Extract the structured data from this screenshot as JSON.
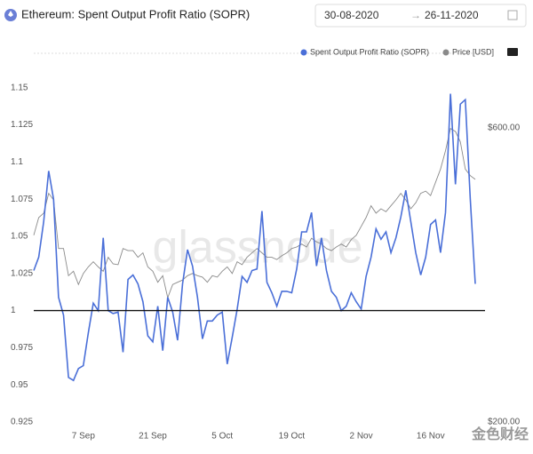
{
  "header": {
    "title": "Ethereum: Spent Output Profit Ratio (SOPR)",
    "date_from": "30-08-2020",
    "date_to": "26-11-2020"
  },
  "watermark": "glassnode",
  "corner_logo": "金色财经",
  "chart_data": {
    "type": "line",
    "categories": [
      null,
      null,
      null,
      null,
      null,
      null,
      null,
      null,
      null,
      null,
      "7 Sep",
      null,
      null,
      null,
      null,
      null,
      null,
      null,
      null,
      null,
      null,
      null,
      null,
      null,
      "21 Sep",
      null,
      null,
      null,
      null,
      null,
      null,
      null,
      null,
      null,
      null,
      null,
      null,
      null,
      "5 Oct",
      null,
      null,
      null,
      null,
      null,
      null,
      null,
      null,
      null,
      null,
      null,
      null,
      null,
      "19 Oct",
      null,
      null,
      null,
      null,
      null,
      null,
      null,
      null,
      null,
      null,
      null,
      null,
      null,
      "2 Nov",
      null,
      null,
      null,
      null,
      null,
      null,
      null,
      null,
      null,
      null,
      null,
      null,
      null,
      "16 Nov",
      null,
      null,
      null,
      null,
      null,
      null,
      null,
      null,
      null
    ],
    "series": [
      {
        "name": "Spent Output Profit Ratio (SOPR)",
        "color": "#4a6fd8",
        "values": [
          1.027,
          1.036,
          1.06,
          1.094,
          1.075,
          1.009,
          0.997,
          0.955,
          0.953,
          0.961,
          0.963,
          0.985,
          1.005,
          1.0,
          1.049,
          1.0,
          0.998,
          0.999,
          0.972,
          1.021,
          1.024,
          1.018,
          1.006,
          0.983,
          0.979,
          1.003,
          0.973,
          1.009,
          0.999,
          0.98,
          1.018,
          1.041,
          1.03,
          1.009,
          0.981,
          0.993,
          0.993,
          0.997,
          0.999,
          0.964,
          0.982,
          1.001,
          1.023,
          1.019,
          1.027,
          1.028,
          1.067,
          1.019,
          1.012,
          1.003,
          1.013,
          1.013,
          1.012,
          1.028,
          1.053,
          1.053,
          1.066,
          1.03,
          1.049,
          1.027,
          1.013,
          1.009,
          1.0,
          1.003,
          1.012,
          1.006,
          1.001,
          1.023,
          1.036,
          1.055,
          1.048,
          1.053,
          1.039,
          1.049,
          1.063,
          1.081,
          1.06,
          1.039,
          1.024,
          1.036,
          1.058,
          1.061,
          1.039,
          1.066,
          1.146,
          1.085,
          1.139,
          1.142,
          1.075,
          1.018
        ]
      },
      {
        "name": "Price [USD]",
        "color": "#8a8a8a",
        "axis": "y2",
        "values": [
          454,
          478,
          484,
          511,
          502,
          436,
          436,
          399,
          405,
          387,
          402,
          411,
          418,
          411,
          405,
          424,
          415,
          414,
          436,
          433,
          433,
          424,
          430,
          411,
          405,
          390,
          399,
          369,
          387,
          390,
          393,
          399,
          402,
          399,
          397,
          390,
          399,
          397,
          405,
          411,
          402,
          418,
          414,
          424,
          430,
          436,
          430,
          424,
          424,
          421,
          426,
          430,
          436,
          438,
          442,
          438,
          450,
          445,
          442,
          436,
          433,
          438,
          442,
          438,
          448,
          454,
          466,
          478,
          494,
          484,
          490,
          486,
          494,
          502,
          511,
          502,
          490,
          498,
          511,
          514,
          508,
          526,
          544,
          569,
          599,
          595,
          581,
          544,
          535,
          530
        ]
      }
    ],
    "reference_line": 1,
    "ylim": [
      0.925,
      1.175
    ],
    "yticks": [
      0.925,
      0.95,
      0.975,
      1,
      1.025,
      1.05,
      1.075,
      1.1,
      1.125,
      1.15
    ],
    "y2lim": [
      200,
      705
    ],
    "y2ticks": [
      {
        "value": 200,
        "label": "$200.00"
      },
      {
        "value": 600,
        "label": "$600.00"
      }
    ],
    "grid": false,
    "legend": "top-right"
  }
}
